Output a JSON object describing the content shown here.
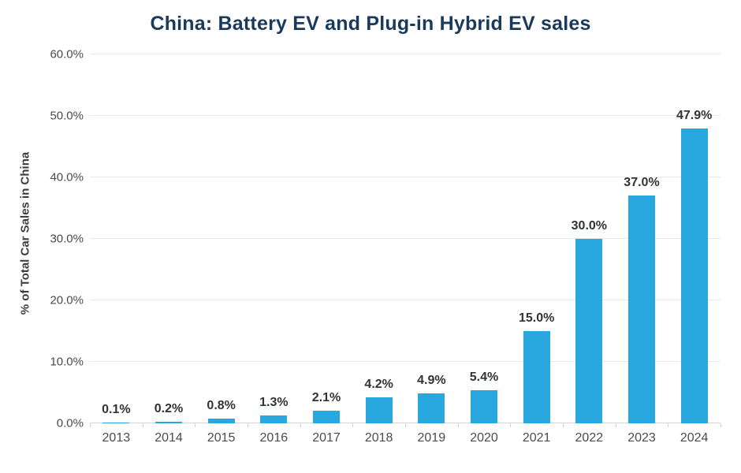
{
  "title": "China: Battery EV and Plug-in Hybrid EV sales",
  "colors": {
    "bar": "#29a8e0",
    "title": "#1a3a5c",
    "gridline": "#e8e8e8",
    "axis_line": "#d5d5d5",
    "tick_text": "#4a4a4a",
    "value_label_text": "#333333"
  },
  "chart_data": {
    "type": "bar",
    "title": "China: Battery EV and Plug-in Hybrid EV sales",
    "xlabel": "",
    "ylabel": "% of Total Car Sales in China",
    "categories": [
      "2013",
      "2014",
      "2015",
      "2016",
      "2017",
      "2018",
      "2019",
      "2020",
      "2021",
      "2022",
      "2023",
      "2024"
    ],
    "values": [
      0.1,
      0.2,
      0.8,
      1.3,
      2.1,
      4.2,
      4.9,
      5.4,
      15.0,
      30.0,
      37.0,
      47.9
    ],
    "value_labels": [
      "0.1%",
      "0.2%",
      "0.8%",
      "1.3%",
      "2.1%",
      "4.2%",
      "4.9%",
      "5.4%",
      "15.0%",
      "30.0%",
      "37.0%",
      "47.9%"
    ],
    "ylim": [
      0,
      60
    ],
    "y_ticks": [
      0,
      10,
      20,
      30,
      40,
      50,
      60
    ],
    "y_tick_labels": [
      "0.0%",
      "10.0%",
      "20.0%",
      "30.0%",
      "40.0%",
      "50.0%",
      "60.0%"
    ],
    "grid": "horizontal-only",
    "legend": "none",
    "bar_color": "#29a8e0"
  }
}
